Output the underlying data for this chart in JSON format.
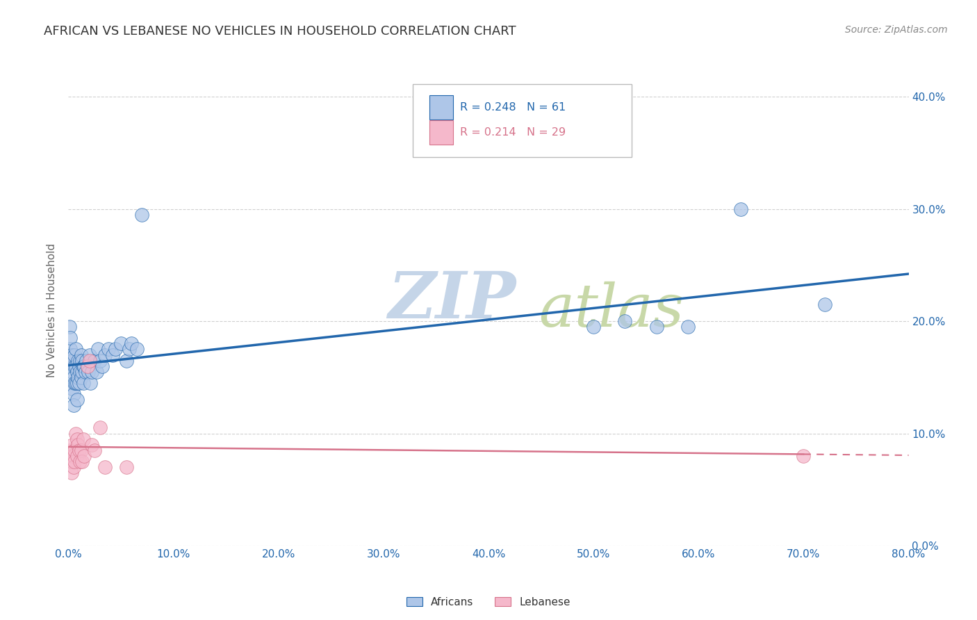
{
  "title": "AFRICAN VS LEBANESE NO VEHICLES IN HOUSEHOLD CORRELATION CHART",
  "source": "Source: ZipAtlas.com",
  "ylabel": "No Vehicles in Household",
  "legend_label1": "Africans",
  "legend_label2": "Lebanese",
  "r1": 0.248,
  "n1": 61,
  "r2": 0.214,
  "n2": 29,
  "blue_color": "#aec6e8",
  "pink_color": "#f5b8cb",
  "blue_line_color": "#2166ac",
  "pink_line_color": "#d6728a",
  "african_x": [
    0.001,
    0.002,
    0.002,
    0.003,
    0.003,
    0.004,
    0.004,
    0.004,
    0.005,
    0.005,
    0.005,
    0.006,
    0.006,
    0.006,
    0.007,
    0.007,
    0.007,
    0.008,
    0.008,
    0.008,
    0.009,
    0.009,
    0.01,
    0.01,
    0.011,
    0.011,
    0.012,
    0.012,
    0.013,
    0.013,
    0.014,
    0.014,
    0.015,
    0.016,
    0.017,
    0.018,
    0.019,
    0.02,
    0.021,
    0.022,
    0.025,
    0.027,
    0.028,
    0.03,
    0.032,
    0.035,
    0.038,
    0.042,
    0.045,
    0.05,
    0.055,
    0.058,
    0.06,
    0.065,
    0.07,
    0.5,
    0.53,
    0.56,
    0.59,
    0.64,
    0.72
  ],
  "african_y": [
    0.195,
    0.175,
    0.185,
    0.16,
    0.17,
    0.14,
    0.165,
    0.155,
    0.15,
    0.135,
    0.125,
    0.16,
    0.145,
    0.17,
    0.175,
    0.16,
    0.145,
    0.155,
    0.13,
    0.145,
    0.165,
    0.15,
    0.16,
    0.145,
    0.165,
    0.155,
    0.15,
    0.17,
    0.165,
    0.155,
    0.16,
    0.145,
    0.16,
    0.155,
    0.165,
    0.16,
    0.155,
    0.17,
    0.145,
    0.155,
    0.165,
    0.155,
    0.175,
    0.165,
    0.16,
    0.17,
    0.175,
    0.17,
    0.175,
    0.18,
    0.165,
    0.175,
    0.18,
    0.175,
    0.295,
    0.195,
    0.2,
    0.195,
    0.195,
    0.3,
    0.215
  ],
  "lebanese_x": [
    0.001,
    0.002,
    0.002,
    0.003,
    0.003,
    0.004,
    0.004,
    0.005,
    0.005,
    0.006,
    0.006,
    0.007,
    0.008,
    0.008,
    0.009,
    0.01,
    0.011,
    0.012,
    0.013,
    0.014,
    0.015,
    0.018,
    0.02,
    0.022,
    0.025,
    0.03,
    0.035,
    0.055,
    0.7
  ],
  "lebanese_y": [
    0.08,
    0.085,
    0.075,
    0.08,
    0.065,
    0.075,
    0.09,
    0.08,
    0.07,
    0.085,
    0.075,
    0.1,
    0.095,
    0.08,
    0.09,
    0.085,
    0.075,
    0.085,
    0.075,
    0.095,
    0.08,
    0.16,
    0.165,
    0.09,
    0.085,
    0.105,
    0.07,
    0.07,
    0.08
  ],
  "xlim": [
    0.0,
    0.8
  ],
  "ylim": [
    0.0,
    0.42
  ],
  "x_tick_positions": [
    0.0,
    0.1,
    0.2,
    0.3,
    0.4,
    0.5,
    0.6,
    0.7,
    0.8
  ],
  "y_tick_positions": [
    0.0,
    0.1,
    0.2,
    0.3,
    0.4
  ],
  "x_tick_labels": [
    "0.0%",
    "10.0%",
    "20.0%",
    "30.0%",
    "40.0%",
    "50.0%",
    "60.0%",
    "70.0%",
    "80.0%"
  ],
  "y_tick_labels_right": [
    "0.0%",
    "10.0%",
    "20.0%",
    "30.0%",
    "40.0%"
  ],
  "watermark_zip": "ZIP",
  "watermark_atlas": "atlas",
  "watermark_color_zip": "#c5d5e8",
  "watermark_color_atlas": "#c8d8a8",
  "background_color": "#ffffff",
  "grid_color": "#d0d0d0",
  "legend_text_color_blue": "#2166ac",
  "legend_text_color_pink": "#d6728a",
  "title_color": "#333333",
  "source_color": "#888888",
  "tick_color": "#2166ac",
  "ylabel_color": "#666666"
}
